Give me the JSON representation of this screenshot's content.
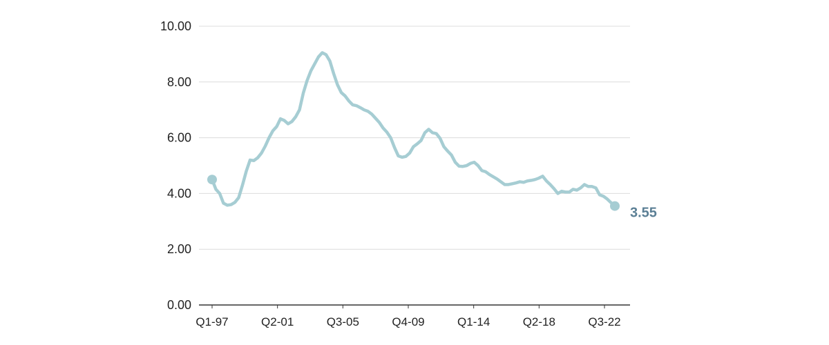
{
  "colors": {
    "line": "#a6cdd3",
    "end_label": "#5b7f95",
    "grid": "#dcdcdc",
    "axis": "#333333",
    "text": "#222222"
  },
  "chart_data": {
    "type": "line",
    "title": "",
    "xlabel": "",
    "ylabel": "",
    "ylim": [
      0,
      10
    ],
    "grid": true,
    "legend": "none",
    "x_tick_labels": [
      "Q1-97",
      "Q2-01",
      "Q3-05",
      "Q4-09",
      "Q1-14",
      "Q2-18",
      "Q3-22"
    ],
    "y_tick_labels": [
      "0.00",
      "2.00",
      "4.00",
      "6.00",
      "8.00",
      "10.00"
    ],
    "y_ticks": [
      0,
      2,
      4,
      6,
      8,
      10
    ],
    "end_value_label": "3.55",
    "series": [
      {
        "values": [
          4.5,
          4.15,
          4.0,
          3.65,
          3.58,
          3.6,
          3.68,
          3.85,
          4.3,
          4.8,
          5.2,
          5.18,
          5.28,
          5.45,
          5.7,
          6.0,
          6.25,
          6.4,
          6.68,
          6.62,
          6.5,
          6.58,
          6.75,
          7.0,
          7.6,
          8.05,
          8.4,
          8.65,
          8.9,
          9.05,
          8.98,
          8.75,
          8.3,
          7.9,
          7.62,
          7.5,
          7.32,
          7.18,
          7.15,
          7.08,
          7.0,
          6.95,
          6.85,
          6.7,
          6.55,
          6.35,
          6.2,
          6.0,
          5.65,
          5.35,
          5.3,
          5.33,
          5.45,
          5.68,
          5.78,
          5.9,
          6.18,
          6.3,
          6.18,
          6.15,
          5.98,
          5.68,
          5.52,
          5.38,
          5.12,
          4.98,
          4.97,
          5.0,
          5.08,
          5.12,
          5.0,
          4.82,
          4.78,
          4.68,
          4.6,
          4.52,
          4.42,
          4.32,
          4.32,
          4.35,
          4.38,
          4.42,
          4.4,
          4.45,
          4.47,
          4.5,
          4.55,
          4.62,
          4.45,
          4.32,
          4.17,
          4.0,
          4.08,
          4.05,
          4.05,
          4.15,
          4.12,
          4.2,
          4.32,
          4.25,
          4.25,
          4.2,
          3.95,
          3.9,
          3.8,
          3.67,
          3.55
        ]
      }
    ]
  }
}
